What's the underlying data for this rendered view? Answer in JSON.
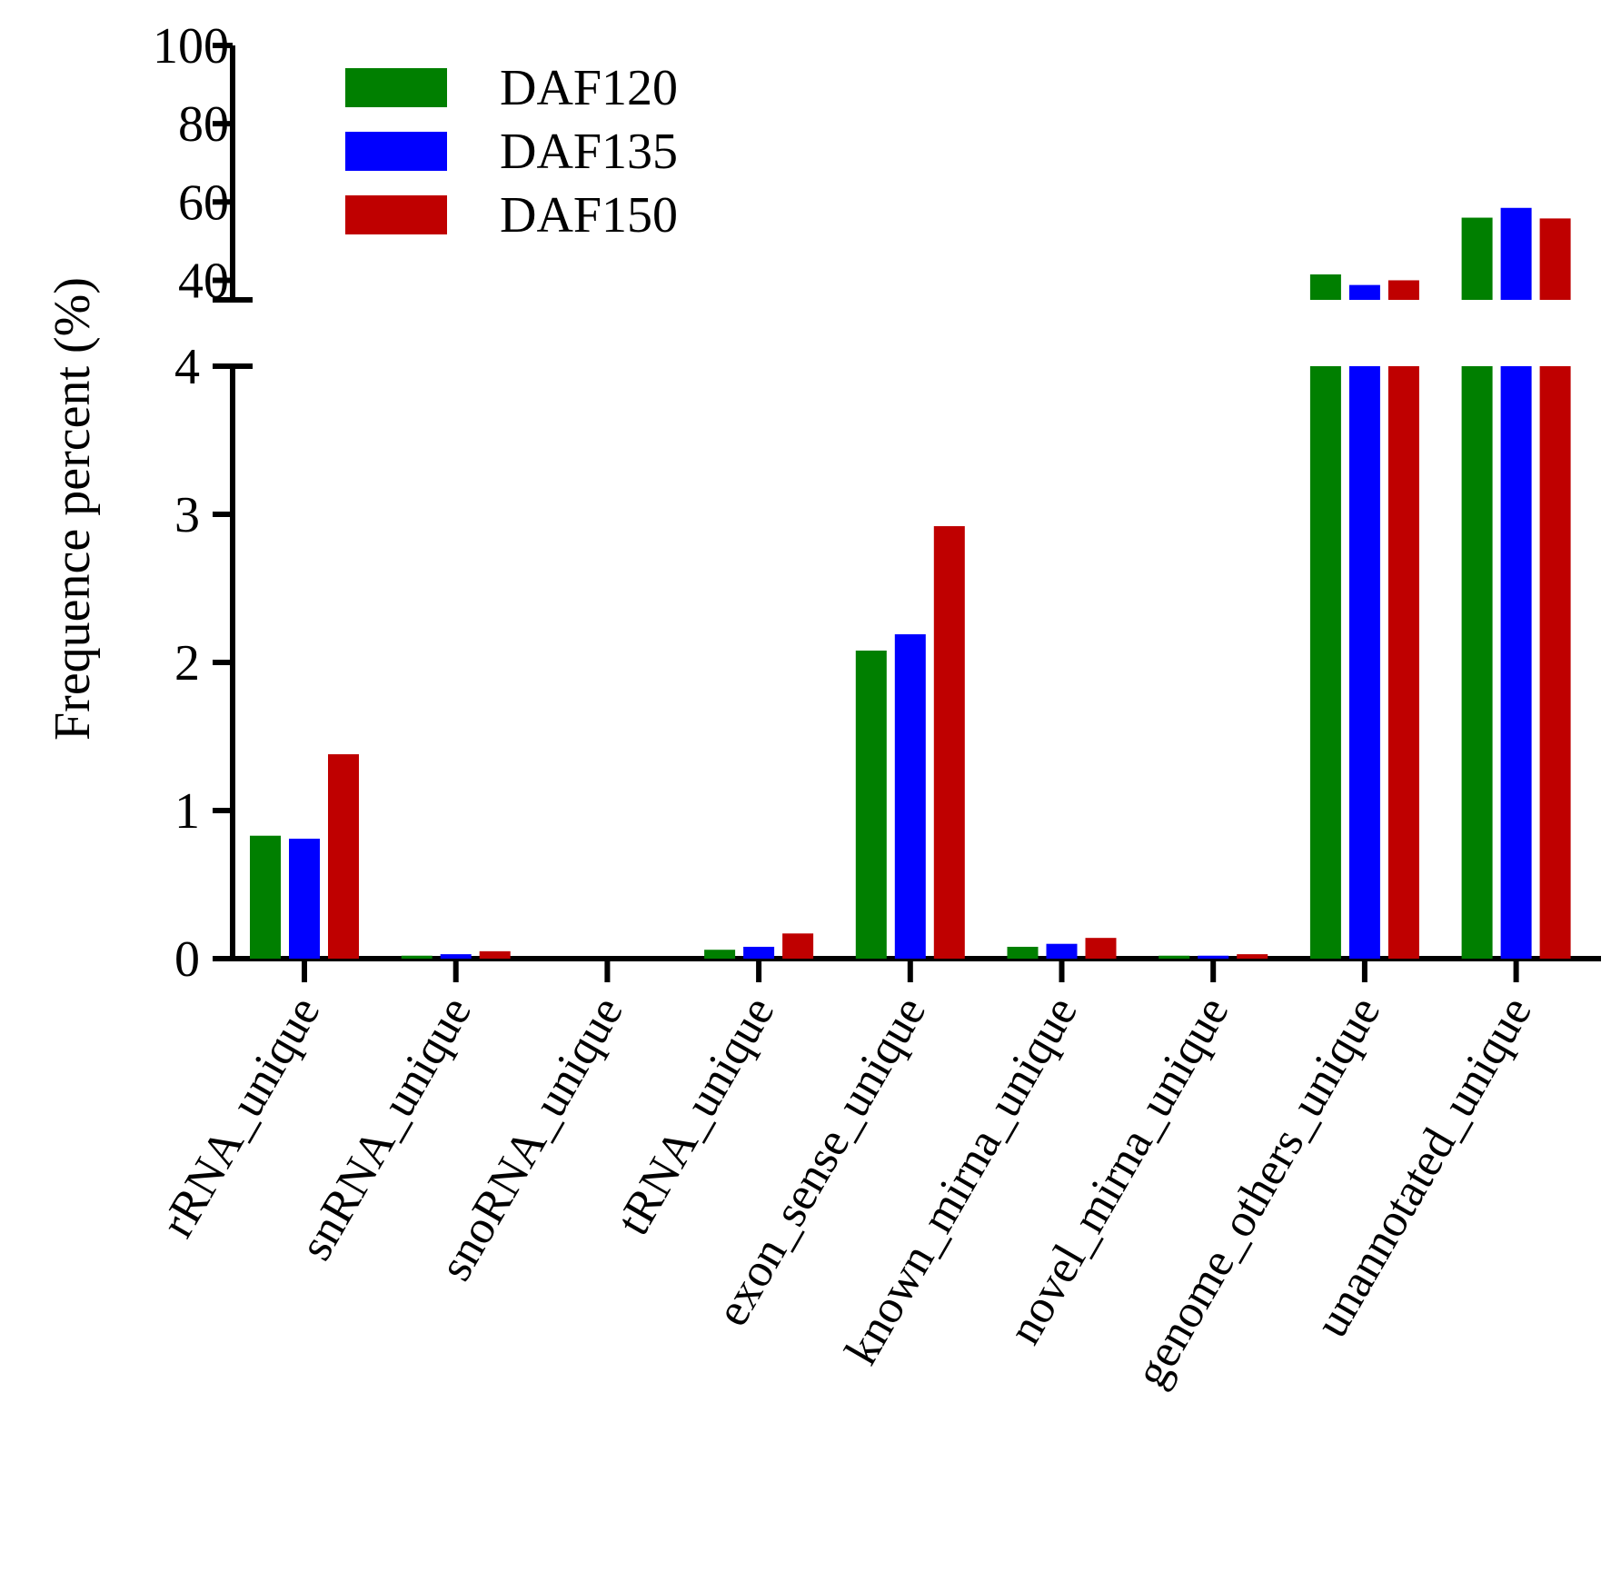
{
  "chart_data": {
    "type": "bar",
    "ylabel": "Frequence percent (%)",
    "xlabel": "",
    "categories": [
      "rRNA_unique",
      "snRNA_unique",
      "snoRNA_unique",
      "tRNA_unique",
      "exon_sense_unique",
      "known_mirna_unique",
      "novel_mirna_unique",
      "genome_others_unique",
      "unannotated_unique"
    ],
    "series": [
      {
        "name": "DAF120",
        "color": "#007f00",
        "values": [
          0.83,
          0.02,
          0.0,
          0.06,
          2.08,
          0.08,
          0.02,
          41.5,
          56.0
        ]
      },
      {
        "name": "DAF135",
        "color": "#0000ff",
        "values": [
          0.81,
          0.03,
          0.0,
          0.08,
          2.19,
          0.1,
          0.02,
          38.8,
          58.5
        ]
      },
      {
        "name": "DAF150",
        "color": "#bf0000",
        "values": [
          1.38,
          0.05,
          0.0,
          0.17,
          2.92,
          0.14,
          0.03,
          40.0,
          55.8
        ]
      }
    ],
    "y_axis": {
      "broken": true,
      "lower_segment": {
        "ylim": [
          0,
          4
        ],
        "ticks": [
          "0",
          "1",
          "2",
          "3",
          "4"
        ]
      },
      "upper_segment": {
        "ylim": [
          35,
          100
        ],
        "ticks": [
          "40",
          "60",
          "80",
          "100"
        ]
      }
    },
    "legend_position": "top-left",
    "grid": false
  }
}
